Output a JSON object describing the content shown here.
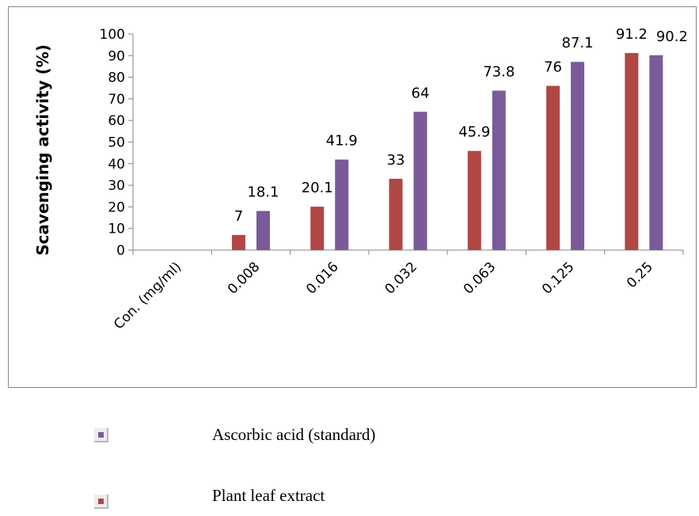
{
  "chart_data": {
    "type": "bar",
    "categories": [
      "Con. (mg/ml)",
      "0.008",
      "0.016",
      "0.032",
      "0.063",
      "0.125",
      "0.25"
    ],
    "series": [
      {
        "name": "Plant leaf extract",
        "color": "#b04745",
        "values": [
          null,
          7,
          20.1,
          33,
          45.9,
          76,
          91.2
        ]
      },
      {
        "name": "Ascorbic acid (standard)",
        "color": "#7a5a98",
        "values": [
          null,
          18.1,
          41.9,
          64,
          73.8,
          87.1,
          90.2
        ]
      }
    ],
    "data_labels": [
      [
        "7",
        "20.1",
        "33",
        "45.9",
        "76",
        "91.2"
      ],
      [
        "18.1",
        "41.9",
        "64",
        "73.8",
        "87.1",
        "90.2"
      ]
    ],
    "ylabel": "Scavenging activity (%)",
    "xlabel": "",
    "ylim": [
      0,
      100
    ],
    "yticks": [
      0,
      10,
      20,
      30,
      40,
      50,
      60,
      70,
      80,
      90,
      100
    ],
    "grid": false,
    "legend_position": "bottom"
  },
  "legend": {
    "items": [
      {
        "label": "Ascorbic acid (standard)",
        "color": "#7a5a98"
      },
      {
        "label": "Plant leaf extract",
        "color": "#b04745"
      }
    ]
  }
}
